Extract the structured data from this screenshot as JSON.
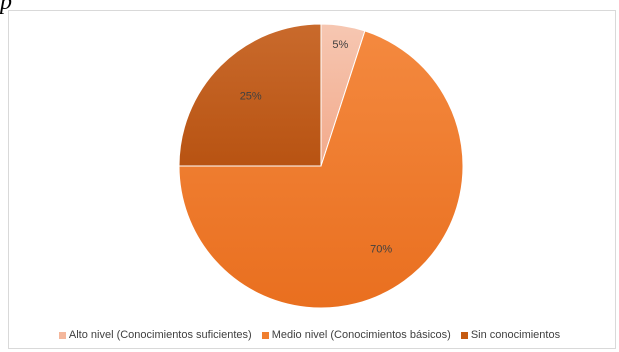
{
  "fragment_text": "p",
  "chart_data": {
    "type": "pie",
    "categories": [
      "Alto nivel (Conocimientos suficientes)",
      "Medio nivel (Conocimientos básicos)",
      "Sin conocimientos"
    ],
    "values": [
      5,
      70,
      25
    ],
    "data_labels": [
      "5%",
      "70%",
      "25%"
    ],
    "colors": [
      "#f4b79c",
      "#f07f2f",
      "#c55a11"
    ],
    "legend_position": "bottom",
    "start_angle": "12 o'clock",
    "direction": "clockwise",
    "title": ""
  }
}
